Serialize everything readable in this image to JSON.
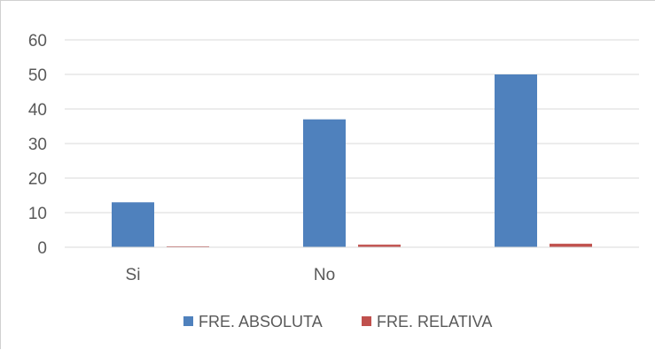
{
  "chart_data": {
    "type": "bar",
    "categories": [
      "Si",
      "No",
      ""
    ],
    "series": [
      {
        "name": "FRE. ABSOLUTA",
        "values": [
          13,
          37,
          50
        ],
        "color": "#4f81bd"
      },
      {
        "name": "FRE. RELATIVA",
        "values": [
          0.26,
          0.74,
          1
        ],
        "color": "#c0504d"
      }
    ],
    "ylim": [
      0,
      60
    ],
    "yticks": [
      0,
      10,
      20,
      30,
      40,
      50,
      60
    ],
    "grid": true,
    "legend_position": "bottom",
    "title": "",
    "xlabel": "",
    "ylabel": ""
  }
}
